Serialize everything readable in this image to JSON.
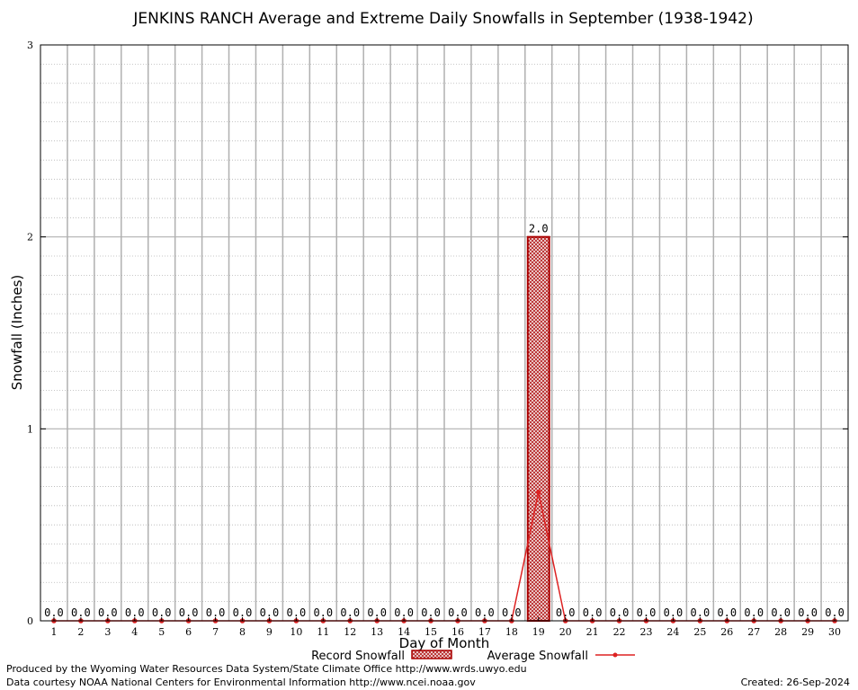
{
  "chart_data": {
    "type": "bar",
    "title": "JENKINS RANCH Average and Extreme Daily Snowfalls in September (1938-1942)",
    "xlabel": "Day of Month",
    "ylabel": "Snowfall (Inches)",
    "ylim": [
      0,
      3
    ],
    "yticks": [
      "0",
      "1",
      "2",
      "3"
    ],
    "grid": true,
    "legend_position": "bottom-center",
    "categories": [
      "1",
      "2",
      "3",
      "4",
      "5",
      "6",
      "7",
      "8",
      "9",
      "10",
      "11",
      "12",
      "13",
      "14",
      "15",
      "16",
      "17",
      "18",
      "19",
      "20",
      "21",
      "22",
      "23",
      "24",
      "25",
      "26",
      "27",
      "28",
      "29",
      "30"
    ],
    "series": [
      {
        "name": "Record Snowfall",
        "kind": "bar",
        "color": "#aa0000",
        "values": [
          0,
          0,
          0,
          0,
          0,
          0,
          0,
          0,
          0,
          0,
          0,
          0,
          0,
          0,
          0,
          0,
          0,
          0,
          2.0,
          0,
          0,
          0,
          0,
          0,
          0,
          0,
          0,
          0,
          0,
          0
        ],
        "labels": [
          "0.0",
          "0.0",
          "0.0",
          "0.0",
          "0.0",
          "0.0",
          "0.0",
          "0.0",
          "0.0",
          "0.0",
          "0.0",
          "0.0",
          "0.0",
          "0.0",
          "0.0",
          "0.0",
          "0.0",
          "0.0",
          "2.0",
          "0.0",
          "0.0",
          "0.0",
          "0.0",
          "0.0",
          "0.0",
          "0.0",
          "0.0",
          "0.0",
          "0.0",
          "0.0"
        ]
      },
      {
        "name": "Average Snowfall",
        "kind": "line",
        "color": "#dd2222",
        "values": [
          0,
          0,
          0,
          0,
          0,
          0,
          0,
          0,
          0,
          0,
          0,
          0,
          0,
          0,
          0,
          0,
          0,
          0,
          0.67,
          0,
          0,
          0,
          0,
          0,
          0,
          0,
          0,
          0,
          0,
          0
        ]
      }
    ]
  },
  "footer": {
    "produced_by": "Produced by the Wyoming Water Resources Data System/State Climate Office http://www.wrds.uwyo.edu",
    "courtesy": "Data courtesy NOAA National Centers for Environmental Information http://www.ncei.noaa.gov",
    "created": "Created:  26-Sep-2024"
  }
}
